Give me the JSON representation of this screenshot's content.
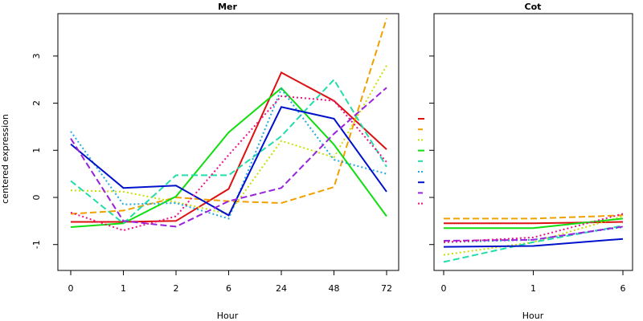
{
  "chart_data": {
    "type": "line",
    "ylabel": "centered expression",
    "yticks": [
      -1,
      0,
      1,
      2,
      3
    ],
    "series_styles": [
      {
        "color": "#dd1111",
        "dash": "solid"
      },
      {
        "color": "#f0a000",
        "dash": "dashed"
      },
      {
        "color": "#c8e000",
        "dash": "dotted"
      },
      {
        "color": "#11dd11",
        "dash": "solid"
      },
      {
        "color": "#22ddaa",
        "dash": "dashed"
      },
      {
        "color": "#22aadd",
        "dash": "dotted"
      },
      {
        "color": "#0011cc",
        "dash": "solid"
      },
      {
        "color": "#9922dd",
        "dash": "dashed"
      },
      {
        "color": "#ee1188",
        "dash": "dotted"
      }
    ],
    "panels": [
      {
        "title": "Mer",
        "xlabel": "Hour",
        "categories": [
          "0",
          "1",
          "2",
          "6",
          "24",
          "48",
          "72"
        ],
        "ylim": [
          -1.55,
          3.9
        ],
        "series": [
          {
            "values": [
              -0.52,
              -0.52,
              -0.5,
              0.18,
              2.65,
              2.05,
              1.02
            ]
          },
          {
            "values": [
              -0.35,
              -0.28,
              0.0,
              -0.08,
              -0.12,
              0.22,
              3.8
            ]
          },
          {
            "values": [
              0.15,
              0.12,
              -0.1,
              -0.35,
              1.2,
              0.85,
              2.8
            ]
          },
          {
            "values": [
              -0.63,
              -0.55,
              0.02,
              1.38,
              2.32,
              1.12,
              -0.4
            ]
          },
          {
            "values": [
              0.35,
              -0.55,
              0.47,
              0.47,
              1.3,
              2.5,
              0.65
            ]
          },
          {
            "values": [
              1.4,
              -0.15,
              -0.12,
              -0.45,
              2.3,
              0.8,
              0.5
            ]
          },
          {
            "values": [
              1.13,
              0.2,
              0.25,
              -0.38,
              1.92,
              1.67,
              0.12
            ]
          },
          {
            "values": [
              1.25,
              -0.5,
              -0.62,
              -0.08,
              0.2,
              1.35,
              2.33
            ]
          },
          {
            "values": [
              -0.32,
              -0.7,
              -0.4,
              0.9,
              2.15,
              2.05,
              0.75
            ]
          }
        ]
      },
      {
        "title": "Cot",
        "xlabel": "Hour",
        "categories": [
          "0",
          "1",
          "6"
        ],
        "ylim": [
          -1.55,
          3.9
        ],
        "series": [
          {
            "values": [
              -0.55,
              -0.55,
              -0.52
            ]
          },
          {
            "values": [
              -0.45,
              -0.45,
              -0.38
            ]
          },
          {
            "values": [
              -1.22,
              -0.95,
              -0.4
            ]
          },
          {
            "values": [
              -0.65,
              -0.65,
              -0.45
            ]
          },
          {
            "values": [
              -1.37,
              -0.95,
              -0.6
            ]
          },
          {
            "values": [
              -0.95,
              -0.9,
              -0.63
            ]
          },
          {
            "values": [
              -1.05,
              -1.03,
              -0.88
            ]
          },
          {
            "values": [
              -0.92,
              -0.9,
              -0.62
            ]
          },
          {
            "values": [
              -0.95,
              -0.85,
              -0.35
            ]
          }
        ]
      }
    ]
  }
}
